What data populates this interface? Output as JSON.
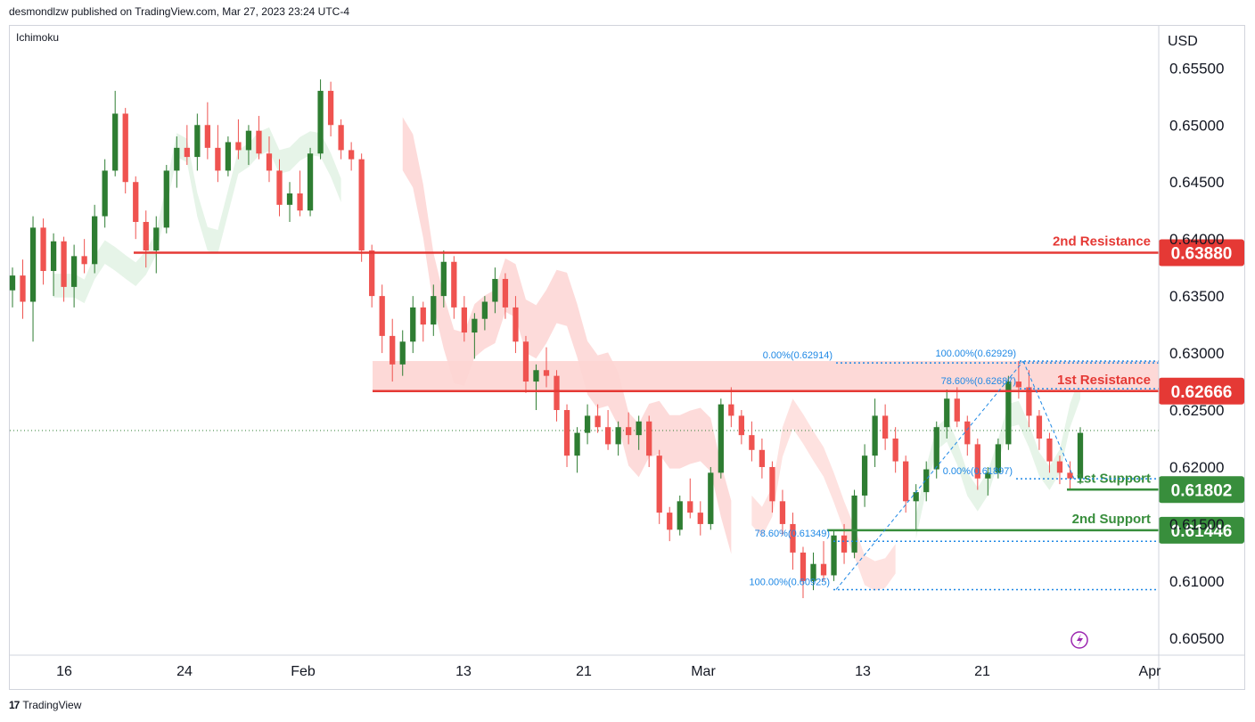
{
  "header": {
    "publisher": "desmondlzw published on TradingView.com, Mar 27, 2023 23:24 UTC-4"
  },
  "indicator_label": "Ichimoku",
  "currency": "USD",
  "footer": {
    "brand": "TradingView",
    "logo_text": "17"
  },
  "colors": {
    "up": "#2e7d32",
    "down": "#ef5350",
    "resistance": "#e53935",
    "support": "#388e3c",
    "fib": "#1e88e5",
    "cloud_red": "#fdd5d3",
    "cloud_green": "#e3f3e5"
  },
  "chart_data": {
    "type": "candlestick",
    "price_axis": {
      "unit": "USD",
      "ticks": [
        "0.65500",
        "0.65000",
        "0.64500",
        "0.64000",
        "0.63500",
        "0.63000",
        "0.62500",
        "0.62000",
        "0.61500",
        "0.61000",
        "0.60500"
      ],
      "range": [
        0.6035,
        0.6587
      ]
    },
    "time_axis": {
      "ticks": [
        "16",
        "24",
        "Feb",
        "13",
        "21",
        "Mar",
        "13",
        "21",
        "Apr"
      ]
    },
    "levels": [
      {
        "label": "2nd Resistance",
        "price": 0.6388,
        "price_text": "0.63880",
        "kind": "resistance"
      },
      {
        "label": "1st Resistance",
        "price": 0.62666,
        "price_text": "0.62666",
        "kind": "resistance"
      },
      {
        "label": "1st Support",
        "price": 0.61802,
        "price_text": "0.61802",
        "kind": "support"
      },
      {
        "label": "2nd Support",
        "price": 0.61446,
        "price_text": "0.61446",
        "kind": "support"
      }
    ],
    "fib_labels": [
      {
        "text": "0.00%(0.62914)",
        "price": 0.62914
      },
      {
        "text": "100.00%(0.62929)",
        "price": 0.62929
      },
      {
        "text": "78.60%(0.62687)",
        "price": 0.62687
      },
      {
        "text": "0.00%(0.61897)",
        "price": 0.61897
      },
      {
        "text": "78.60%(0.61349)",
        "price": 0.61349
      },
      {
        "text": "100.00%(0.60925)",
        "price": 0.60925
      }
    ],
    "current_price": 0.6232,
    "candles": [
      {
        "o": 0.6355,
        "h": 0.6375,
        "l": 0.634,
        "c": 0.6368
      },
      {
        "o": 0.6368,
        "h": 0.6382,
        "l": 0.633,
        "c": 0.6345
      },
      {
        "o": 0.6345,
        "h": 0.642,
        "l": 0.631,
        "c": 0.641
      },
      {
        "o": 0.641,
        "h": 0.6418,
        "l": 0.636,
        "c": 0.6372
      },
      {
        "o": 0.6372,
        "h": 0.6405,
        "l": 0.635,
        "c": 0.6398
      },
      {
        "o": 0.6398,
        "h": 0.6402,
        "l": 0.6345,
        "c": 0.6358
      },
      {
        "o": 0.6358,
        "h": 0.6395,
        "l": 0.634,
        "c": 0.6385
      },
      {
        "o": 0.6385,
        "h": 0.64,
        "l": 0.637,
        "c": 0.6378
      },
      {
        "o": 0.6378,
        "h": 0.643,
        "l": 0.637,
        "c": 0.642
      },
      {
        "o": 0.642,
        "h": 0.647,
        "l": 0.641,
        "c": 0.646
      },
      {
        "o": 0.646,
        "h": 0.653,
        "l": 0.6455,
        "c": 0.651
      },
      {
        "o": 0.651,
        "h": 0.6515,
        "l": 0.644,
        "c": 0.645
      },
      {
        "o": 0.645,
        "h": 0.6455,
        "l": 0.64,
        "c": 0.6415
      },
      {
        "o": 0.6415,
        "h": 0.6425,
        "l": 0.6375,
        "c": 0.639
      },
      {
        "o": 0.639,
        "h": 0.642,
        "l": 0.637,
        "c": 0.641
      },
      {
        "o": 0.641,
        "h": 0.6465,
        "l": 0.6405,
        "c": 0.646
      },
      {
        "o": 0.646,
        "h": 0.649,
        "l": 0.6445,
        "c": 0.648
      },
      {
        "o": 0.648,
        "h": 0.65,
        "l": 0.6465,
        "c": 0.6472
      },
      {
        "o": 0.6472,
        "h": 0.651,
        "l": 0.646,
        "c": 0.65
      },
      {
        "o": 0.65,
        "h": 0.652,
        "l": 0.647,
        "c": 0.648
      },
      {
        "o": 0.648,
        "h": 0.65,
        "l": 0.645,
        "c": 0.646
      },
      {
        "o": 0.646,
        "h": 0.649,
        "l": 0.6455,
        "c": 0.6485
      },
      {
        "o": 0.6485,
        "h": 0.6505,
        "l": 0.647,
        "c": 0.6478
      },
      {
        "o": 0.6478,
        "h": 0.65,
        "l": 0.6465,
        "c": 0.6495
      },
      {
        "o": 0.6495,
        "h": 0.6508,
        "l": 0.647,
        "c": 0.6475
      },
      {
        "o": 0.6475,
        "h": 0.649,
        "l": 0.645,
        "c": 0.646
      },
      {
        "o": 0.646,
        "h": 0.647,
        "l": 0.642,
        "c": 0.643
      },
      {
        "o": 0.643,
        "h": 0.645,
        "l": 0.6415,
        "c": 0.644
      },
      {
        "o": 0.644,
        "h": 0.646,
        "l": 0.642,
        "c": 0.6425
      },
      {
        "o": 0.6425,
        "h": 0.648,
        "l": 0.642,
        "c": 0.6475
      },
      {
        "o": 0.6475,
        "h": 0.654,
        "l": 0.647,
        "c": 0.653
      },
      {
        "o": 0.653,
        "h": 0.6538,
        "l": 0.649,
        "c": 0.65
      },
      {
        "o": 0.65,
        "h": 0.6505,
        "l": 0.647,
        "c": 0.6478
      },
      {
        "o": 0.6478,
        "h": 0.6485,
        "l": 0.646,
        "c": 0.647
      },
      {
        "o": 0.647,
        "h": 0.6475,
        "l": 0.638,
        "c": 0.639
      },
      {
        "o": 0.639,
        "h": 0.6395,
        "l": 0.634,
        "c": 0.635
      },
      {
        "o": 0.635,
        "h": 0.636,
        "l": 0.63,
        "c": 0.6315
      },
      {
        "o": 0.6315,
        "h": 0.633,
        "l": 0.6275,
        "c": 0.629
      },
      {
        "o": 0.629,
        "h": 0.632,
        "l": 0.628,
        "c": 0.631
      },
      {
        "o": 0.631,
        "h": 0.635,
        "l": 0.63,
        "c": 0.634
      },
      {
        "o": 0.634,
        "h": 0.6345,
        "l": 0.631,
        "c": 0.6325
      },
      {
        "o": 0.6325,
        "h": 0.636,
        "l": 0.6315,
        "c": 0.635
      },
      {
        "o": 0.635,
        "h": 0.639,
        "l": 0.634,
        "c": 0.638
      },
      {
        "o": 0.638,
        "h": 0.6385,
        "l": 0.633,
        "c": 0.634
      },
      {
        "o": 0.634,
        "h": 0.635,
        "l": 0.631,
        "c": 0.6318
      },
      {
        "o": 0.6318,
        "h": 0.6335,
        "l": 0.6295,
        "c": 0.633
      },
      {
        "o": 0.633,
        "h": 0.635,
        "l": 0.632,
        "c": 0.6345
      },
      {
        "o": 0.6345,
        "h": 0.6375,
        "l": 0.6335,
        "c": 0.6365
      },
      {
        "o": 0.6365,
        "h": 0.637,
        "l": 0.633,
        "c": 0.634
      },
      {
        "o": 0.634,
        "h": 0.635,
        "l": 0.63,
        "c": 0.631
      },
      {
        "o": 0.631,
        "h": 0.6315,
        "l": 0.6265,
        "c": 0.6275
      },
      {
        "o": 0.6275,
        "h": 0.629,
        "l": 0.625,
        "c": 0.6285
      },
      {
        "o": 0.6285,
        "h": 0.6305,
        "l": 0.627,
        "c": 0.628
      },
      {
        "o": 0.628,
        "h": 0.6285,
        "l": 0.624,
        "c": 0.625
      },
      {
        "o": 0.625,
        "h": 0.6255,
        "l": 0.62,
        "c": 0.621
      },
      {
        "o": 0.621,
        "h": 0.6235,
        "l": 0.6195,
        "c": 0.623
      },
      {
        "o": 0.623,
        "h": 0.6255,
        "l": 0.622,
        "c": 0.6245
      },
      {
        "o": 0.6245,
        "h": 0.6255,
        "l": 0.623,
        "c": 0.6235
      },
      {
        "o": 0.6235,
        "h": 0.625,
        "l": 0.6215,
        "c": 0.622
      },
      {
        "o": 0.622,
        "h": 0.624,
        "l": 0.621,
        "c": 0.6235
      },
      {
        "o": 0.6235,
        "h": 0.6248,
        "l": 0.622,
        "c": 0.6228
      },
      {
        "o": 0.6228,
        "h": 0.6245,
        "l": 0.6215,
        "c": 0.624
      },
      {
        "o": 0.624,
        "h": 0.6245,
        "l": 0.62,
        "c": 0.621
      },
      {
        "o": 0.621,
        "h": 0.6215,
        "l": 0.615,
        "c": 0.616
      },
      {
        "o": 0.616,
        "h": 0.6165,
        "l": 0.6135,
        "c": 0.6145
      },
      {
        "o": 0.6145,
        "h": 0.6175,
        "l": 0.614,
        "c": 0.617
      },
      {
        "o": 0.617,
        "h": 0.619,
        "l": 0.6155,
        "c": 0.616
      },
      {
        "o": 0.616,
        "h": 0.617,
        "l": 0.614,
        "c": 0.615
      },
      {
        "o": 0.615,
        "h": 0.62,
        "l": 0.6145,
        "c": 0.6195
      },
      {
        "o": 0.6195,
        "h": 0.626,
        "l": 0.619,
        "c": 0.6255
      },
      {
        "o": 0.6255,
        "h": 0.627,
        "l": 0.6235,
        "c": 0.6245
      },
      {
        "o": 0.6245,
        "h": 0.625,
        "l": 0.622,
        "c": 0.6228
      },
      {
        "o": 0.6228,
        "h": 0.624,
        "l": 0.6205,
        "c": 0.6215
      },
      {
        "o": 0.6215,
        "h": 0.6225,
        "l": 0.619,
        "c": 0.62
      },
      {
        "o": 0.62,
        "h": 0.6205,
        "l": 0.616,
        "c": 0.617
      },
      {
        "o": 0.617,
        "h": 0.618,
        "l": 0.614,
        "c": 0.615
      },
      {
        "o": 0.615,
        "h": 0.616,
        "l": 0.611,
        "c": 0.6125
      },
      {
        "o": 0.6125,
        "h": 0.613,
        "l": 0.6085,
        "c": 0.61
      },
      {
        "o": 0.61,
        "h": 0.6125,
        "l": 0.6092,
        "c": 0.6115
      },
      {
        "o": 0.6115,
        "h": 0.6135,
        "l": 0.61,
        "c": 0.6105
      },
      {
        "o": 0.6105,
        "h": 0.6145,
        "l": 0.61,
        "c": 0.614
      },
      {
        "o": 0.614,
        "h": 0.615,
        "l": 0.6115,
        "c": 0.6125
      },
      {
        "o": 0.6125,
        "h": 0.618,
        "l": 0.612,
        "c": 0.6175
      },
      {
        "o": 0.6175,
        "h": 0.622,
        "l": 0.6165,
        "c": 0.621
      },
      {
        "o": 0.621,
        "h": 0.626,
        "l": 0.62,
        "c": 0.6245
      },
      {
        "o": 0.6245,
        "h": 0.6255,
        "l": 0.6215,
        "c": 0.6225
      },
      {
        "o": 0.6225,
        "h": 0.6235,
        "l": 0.6195,
        "c": 0.6205
      },
      {
        "o": 0.6205,
        "h": 0.621,
        "l": 0.616,
        "c": 0.617
      },
      {
        "o": 0.617,
        "h": 0.6185,
        "l": 0.6145,
        "c": 0.6178
      },
      {
        "o": 0.6178,
        "h": 0.6205,
        "l": 0.617,
        "c": 0.6198
      },
      {
        "o": 0.6198,
        "h": 0.624,
        "l": 0.619,
        "c": 0.6235
      },
      {
        "o": 0.6235,
        "h": 0.6268,
        "l": 0.6225,
        "c": 0.626
      },
      {
        "o": 0.626,
        "h": 0.627,
        "l": 0.6235,
        "c": 0.624
      },
      {
        "o": 0.624,
        "h": 0.6245,
        "l": 0.621,
        "c": 0.622
      },
      {
        "o": 0.622,
        "h": 0.6225,
        "l": 0.618,
        "c": 0.619
      },
      {
        "o": 0.619,
        "h": 0.62,
        "l": 0.6175,
        "c": 0.6195
      },
      {
        "o": 0.6195,
        "h": 0.6225,
        "l": 0.619,
        "c": 0.622
      },
      {
        "o": 0.622,
        "h": 0.628,
        "l": 0.6215,
        "c": 0.6275
      },
      {
        "o": 0.6275,
        "h": 0.6293,
        "l": 0.626,
        "c": 0.627
      },
      {
        "o": 0.627,
        "h": 0.6285,
        "l": 0.6235,
        "c": 0.6245
      },
      {
        "o": 0.6245,
        "h": 0.625,
        "l": 0.6215,
        "c": 0.6225
      },
      {
        "o": 0.6225,
        "h": 0.623,
        "l": 0.6195,
        "c": 0.6205
      },
      {
        "o": 0.6205,
        "h": 0.621,
        "l": 0.6185,
        "c": 0.6195
      },
      {
        "o": 0.6195,
        "h": 0.6205,
        "l": 0.618,
        "c": 0.619
      },
      {
        "o": 0.619,
        "h": 0.6235,
        "l": 0.6185,
        "c": 0.623
      }
    ]
  }
}
